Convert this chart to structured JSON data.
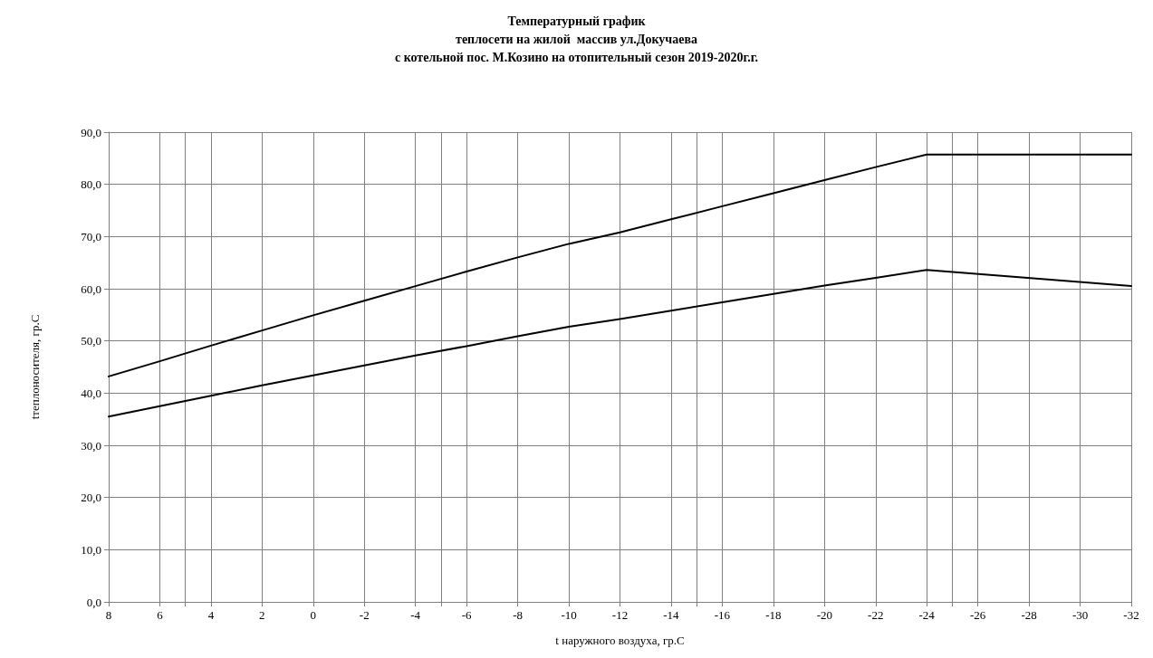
{
  "chart_data": {
    "type": "line",
    "title": "Температурный график\nтеплосети на жилой  массив ул.Докучаева\nс котельной пос. М.Козино на отопительный сезон 2019-2020г.г.",
    "xlabel": "t наружного воздуха, гр.С",
    "ylabel": "tтеплоносителя, гр.С",
    "series": [
      {
        "color": "#000000",
        "x": [
          8,
          6,
          4,
          2,
          0,
          -2,
          -4,
          -6,
          -8,
          -10,
          -12,
          -14,
          -16,
          -18,
          -20,
          -22,
          -24,
          -32
        ],
        "values": [
          43.2,
          46.1,
          49.1,
          52.0,
          54.9,
          57.7,
          60.5,
          63.3,
          66.0,
          68.6,
          70.8,
          73.3,
          75.8,
          78.3,
          80.8,
          83.3,
          85.7,
          85.7
        ]
      },
      {
        "color": "#000000",
        "x": [
          8,
          6,
          4,
          2,
          0,
          -2,
          -4,
          -6,
          -8,
          -10,
          -12,
          -14,
          -16,
          -18,
          -20,
          -22,
          -24,
          -32
        ],
        "values": [
          35.5,
          37.5,
          39.5,
          41.5,
          43.4,
          45.3,
          47.2,
          49.0,
          50.9,
          52.7,
          54.2,
          55.8,
          57.4,
          59.0,
          60.6,
          62.1,
          63.6,
          60.5
        ]
      }
    ],
    "xlim": [
      8,
      -32
    ],
    "xticks": [
      8,
      6,
      4,
      2,
      0,
      -2,
      -4,
      -6,
      -8,
      -10,
      -12,
      -14,
      -16,
      -18,
      -20,
      -22,
      -24,
      -26,
      -28,
      -30,
      -32
    ],
    "ylim": [
      0,
      90
    ],
    "yticks": [
      {
        "value": 0,
        "label": "0,0"
      },
      {
        "value": 10,
        "label": "10,0"
      },
      {
        "value": 20,
        "label": "20,0"
      },
      {
        "value": 30,
        "label": "30,0"
      },
      {
        "value": 40,
        "label": "40,0"
      },
      {
        "value": 50,
        "label": "50,0"
      },
      {
        "value": 60,
        "label": "60,0"
      },
      {
        "value": 70,
        "label": "70,0"
      },
      {
        "value": 80,
        "label": "80,0"
      },
      {
        "value": 90,
        "label": "90,0"
      }
    ],
    "grid": true,
    "marker": "none",
    "line_style": "solid"
  }
}
